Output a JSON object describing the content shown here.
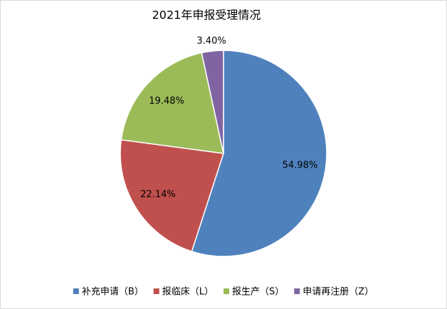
{
  "chart_data": {
    "type": "pie",
    "title": "2021年申报受理情况",
    "categories": [
      "补充申请（B）",
      "报临床（L）",
      "报生产（S）",
      "申请再注册（Z）"
    ],
    "values": [
      54.98,
      22.14,
      19.48,
      3.4
    ],
    "value_labels": [
      "54.98%",
      "22.14%",
      "19.48%",
      "3.40%"
    ],
    "colors": [
      "#4f81bd",
      "#c0504d",
      "#9bbb59",
      "#8064a2"
    ],
    "legend": "bottom"
  }
}
